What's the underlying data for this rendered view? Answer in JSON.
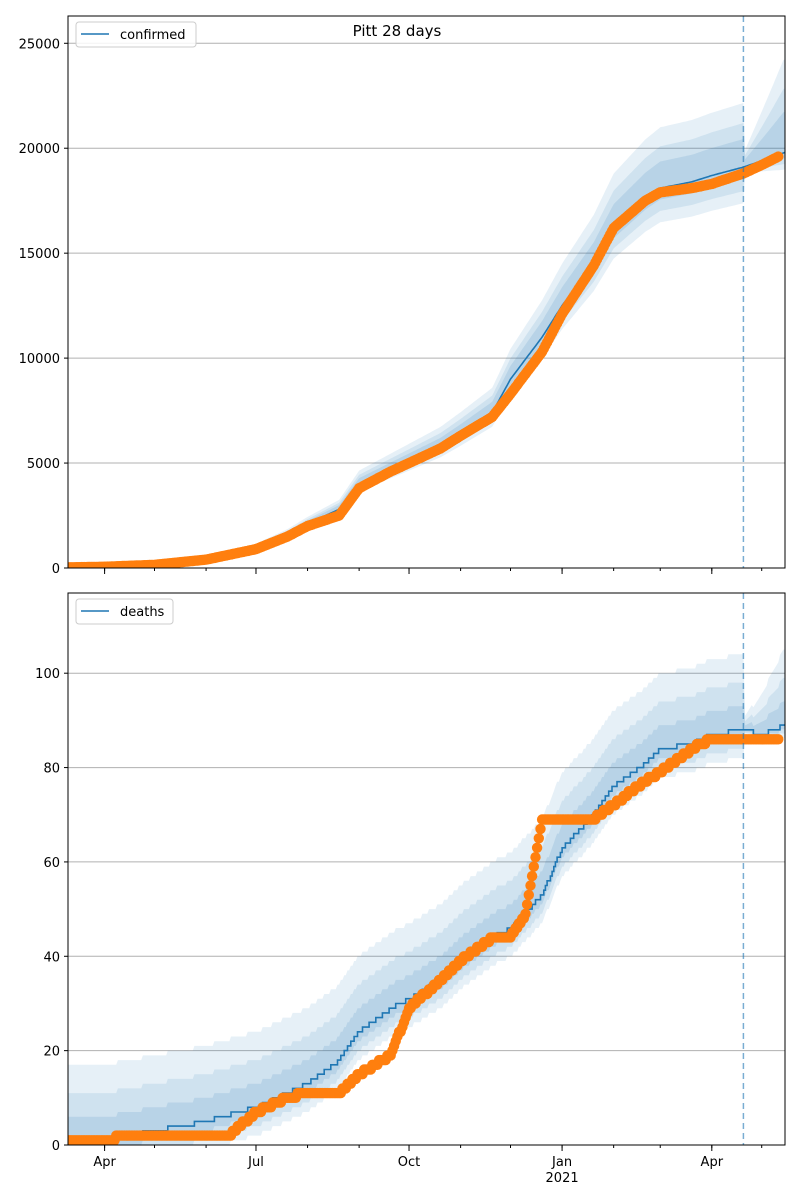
{
  "figure": {
    "title": "Pitt 28 days",
    "forecast_line_date": "2021-04-20",
    "colors": {
      "model_line": "#1f77b4",
      "observed_points": "#ff7f0e",
      "band": "#1f77b4",
      "grid": "#b0b0b0",
      "vline": "#1f77b4"
    }
  },
  "chart_data": [
    {
      "type": "line",
      "title": "Pitt 28 days",
      "legend": {
        "label": "confirmed",
        "placement": "top-left"
      },
      "xlim": [
        "2020-03-10",
        "2021-05-15"
      ],
      "ylim": [
        0,
        26300
      ],
      "yticks": [
        0,
        5000,
        10000,
        15000,
        20000,
        25000
      ],
      "xticks": [
        {
          "date": "2020-04-01",
          "label": "Apr",
          "sublabel": ""
        },
        {
          "date": "2020-07-01",
          "label": "Jul",
          "sublabel": ""
        },
        {
          "date": "2020-10-01",
          "label": "Oct",
          "sublabel": ""
        },
        {
          "date": "2021-01-01",
          "label": "Jan",
          "sublabel": "2021"
        },
        {
          "date": "2021-04-01",
          "label": "Apr",
          "sublabel": ""
        }
      ],
      "grid": "horizontal",
      "model": {
        "x": [
          "2020-03-10",
          "2020-04-01",
          "2020-05-01",
          "2020-06-01",
          "2020-07-01",
          "2020-07-20",
          "2020-08-01",
          "2020-08-20",
          "2020-09-01",
          "2020-09-20",
          "2020-10-01",
          "2020-10-20",
          "2020-11-01",
          "2020-11-20",
          "2020-12-01",
          "2020-12-20",
          "2021-01-01",
          "2021-01-20",
          "2021-02-01",
          "2021-02-20",
          "2021-03-01",
          "2021-03-20",
          "2021-04-01",
          "2021-04-20",
          "2021-05-01",
          "2021-05-15"
        ],
        "y": [
          20,
          60,
          200,
          500,
          1000,
          1600,
          2100,
          2800,
          4000,
          4700,
          5100,
          5800,
          6400,
          7400,
          9000,
          11000,
          12500,
          14500,
          16200,
          17600,
          18100,
          18400,
          18700,
          19100,
          19400,
          19800
        ],
        "band_inner": [
          0.03,
          0.07
        ],
        "band_mid": [
          0.06,
          0.11
        ],
        "band_outer": [
          0.09,
          0.16
        ]
      },
      "observed": {
        "x": [
          "2020-03-10",
          "2020-04-01",
          "2020-05-01",
          "2020-06-01",
          "2020-07-01",
          "2020-07-20",
          "2020-08-01",
          "2020-08-20",
          "2020-09-01",
          "2020-09-20",
          "2020-10-01",
          "2020-10-20",
          "2020-11-01",
          "2020-11-20",
          "2020-12-01",
          "2020-12-20",
          "2021-01-01",
          "2021-01-20",
          "2021-02-01",
          "2021-02-20",
          "2021-03-01",
          "2021-03-20",
          "2021-04-01",
          "2021-04-20",
          "2021-05-01",
          "2021-05-11"
        ],
        "y": [
          30,
          60,
          150,
          400,
          900,
          1500,
          2000,
          2500,
          3800,
          4600,
          5000,
          5700,
          6300,
          7200,
          8300,
          10300,
          12100,
          14400,
          16200,
          17500,
          17900,
          18100,
          18300,
          18800,
          19200,
          19600
        ]
      }
    },
    {
      "type": "line",
      "title": "",
      "legend": {
        "label": "deaths",
        "placement": "top-left"
      },
      "xlim": [
        "2020-03-10",
        "2021-05-15"
      ],
      "ylim": [
        0,
        117
      ],
      "yticks": [
        0,
        20,
        40,
        60,
        80,
        100
      ],
      "xticks": [
        {
          "date": "2020-04-01",
          "label": "Apr",
          "sublabel": ""
        },
        {
          "date": "2020-07-01",
          "label": "Jul",
          "sublabel": ""
        },
        {
          "date": "2020-10-01",
          "label": "Oct",
          "sublabel": ""
        },
        {
          "date": "2021-01-01",
          "label": "Jan",
          "sublabel": "2021"
        },
        {
          "date": "2021-04-01",
          "label": "Apr",
          "sublabel": ""
        }
      ],
      "grid": "horizontal",
      "model": {
        "x": [
          "2020-03-10",
          "2020-04-01",
          "2020-05-01",
          "2020-06-01",
          "2020-07-01",
          "2020-07-20",
          "2020-08-01",
          "2020-08-20",
          "2020-09-01",
          "2020-09-20",
          "2020-10-01",
          "2020-10-20",
          "2020-11-01",
          "2020-11-20",
          "2020-12-01",
          "2020-12-20",
          "2021-01-01",
          "2021-01-20",
          "2021-02-01",
          "2021-02-20",
          "2021-03-01",
          "2021-03-20",
          "2021-04-01",
          "2021-04-20",
          "2021-05-01",
          "2021-05-15"
        ],
        "y": [
          1,
          1,
          3,
          5,
          8,
          11,
          13,
          18,
          24,
          29,
          31,
          35,
          39,
          44,
          46,
          53,
          63,
          70,
          76,
          81,
          84,
          85,
          87,
          88,
          87,
          89
        ],
        "band_inner": [
          2,
          5
        ],
        "band_mid": [
          4,
          10
        ],
        "band_outer": [
          6,
          16
        ]
      },
      "observed": {
        "x": [
          "2020-03-10",
          "2020-04-01",
          "2020-04-15",
          "2020-05-01",
          "2020-06-01",
          "2020-06-15",
          "2020-07-01",
          "2020-07-20",
          "2020-08-01",
          "2020-08-20",
          "2020-09-01",
          "2020-09-20",
          "2020-10-01",
          "2020-10-20",
          "2020-11-01",
          "2020-11-20",
          "2020-12-01",
          "2020-12-10",
          "2020-12-20",
          "2021-01-01",
          "2021-01-20",
          "2021-02-01",
          "2021-02-15",
          "2021-03-01",
          "2021-03-20",
          "2021-04-01",
          "2021-04-20",
          "2021-05-01",
          "2021-05-11"
        ],
        "y": [
          1,
          1,
          2,
          2,
          2,
          2,
          7,
          10,
          11,
          11,
          15,
          19,
          29,
          35,
          39,
          44,
          44,
          49,
          69,
          69,
          69,
          72,
          76,
          79,
          84,
          86,
          86,
          86,
          86
        ]
      }
    }
  ]
}
